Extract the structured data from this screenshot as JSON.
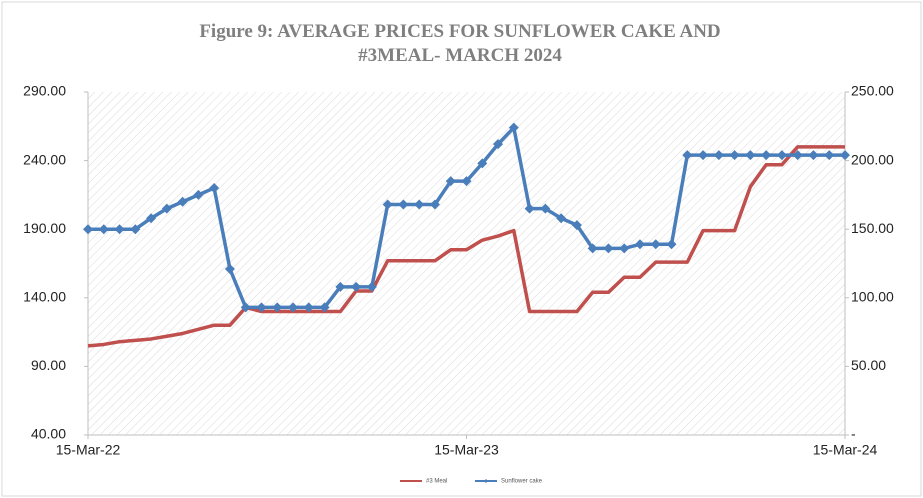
{
  "chart_data": {
    "type": "line",
    "title": "Figure 9: AVERAGE PRICES FOR SUNFLOWER CAKE AND #3MEAL- MARCH 2024",
    "categories": [
      "15-Mar-22",
      null,
      null,
      null,
      null,
      null,
      null,
      null,
      null,
      null,
      null,
      null,
      null,
      null,
      null,
      null,
      null,
      null,
      null,
      null,
      null,
      null,
      null,
      null,
      "15-Mar-23",
      null,
      null,
      null,
      null,
      null,
      null,
      null,
      null,
      null,
      null,
      null,
      null,
      null,
      null,
      null,
      null,
      null,
      null,
      null,
      null,
      null,
      null,
      null,
      "15-Mar-24"
    ],
    "series": [
      {
        "name": "#3 Meal",
        "color": "#c0504d",
        "axis": "y",
        "values": [
          105,
          106,
          108,
          109,
          110,
          112,
          114,
          117,
          120,
          120,
          133,
          130,
          130,
          130,
          130,
          130,
          130,
          145,
          145,
          167,
          167,
          167,
          167,
          175,
          175,
          182,
          185,
          189,
          130,
          130,
          130,
          130,
          144,
          144,
          155,
          155,
          166,
          166,
          166,
          189,
          189,
          189,
          221,
          237,
          237,
          250,
          250,
          250,
          250
        ]
      },
      {
        "name": "Sunflower cake",
        "color": "#4a7ebb",
        "axis": "y2",
        "values": [
          150,
          150,
          150,
          150,
          158,
          165,
          170,
          175,
          180,
          121,
          93,
          93,
          93,
          93,
          93,
          93,
          108,
          108,
          108,
          168,
          168,
          168,
          168,
          185,
          185,
          198,
          212,
          224,
          165,
          165,
          158,
          153,
          136,
          136,
          136,
          139,
          139,
          139,
          204,
          204,
          204,
          204,
          204,
          204,
          204,
          204,
          204,
          204,
          204
        ]
      }
    ],
    "ylim": [
      40,
      290
    ],
    "yticks": [
      {
        "value": 40,
        "label": "40.00"
      },
      {
        "value": 90,
        "label": "90.00"
      },
      {
        "value": 140,
        "label": "140.00"
      },
      {
        "value": 190,
        "label": "190.00"
      },
      {
        "value": 240,
        "label": "240.00"
      },
      {
        "value": 290,
        "label": "290.00"
      }
    ],
    "y2lim": [
      0,
      250
    ],
    "y2ticks": [
      {
        "value": 0,
        "label": "-"
      },
      {
        "value": 50,
        "label": "50.00"
      },
      {
        "value": 100,
        "label": "100.00"
      },
      {
        "value": 150,
        "label": "150.00"
      },
      {
        "value": 200,
        "label": "200.00"
      },
      {
        "value": 250,
        "label": "250.00"
      }
    ],
    "grid": false,
    "legend": "bottom"
  }
}
